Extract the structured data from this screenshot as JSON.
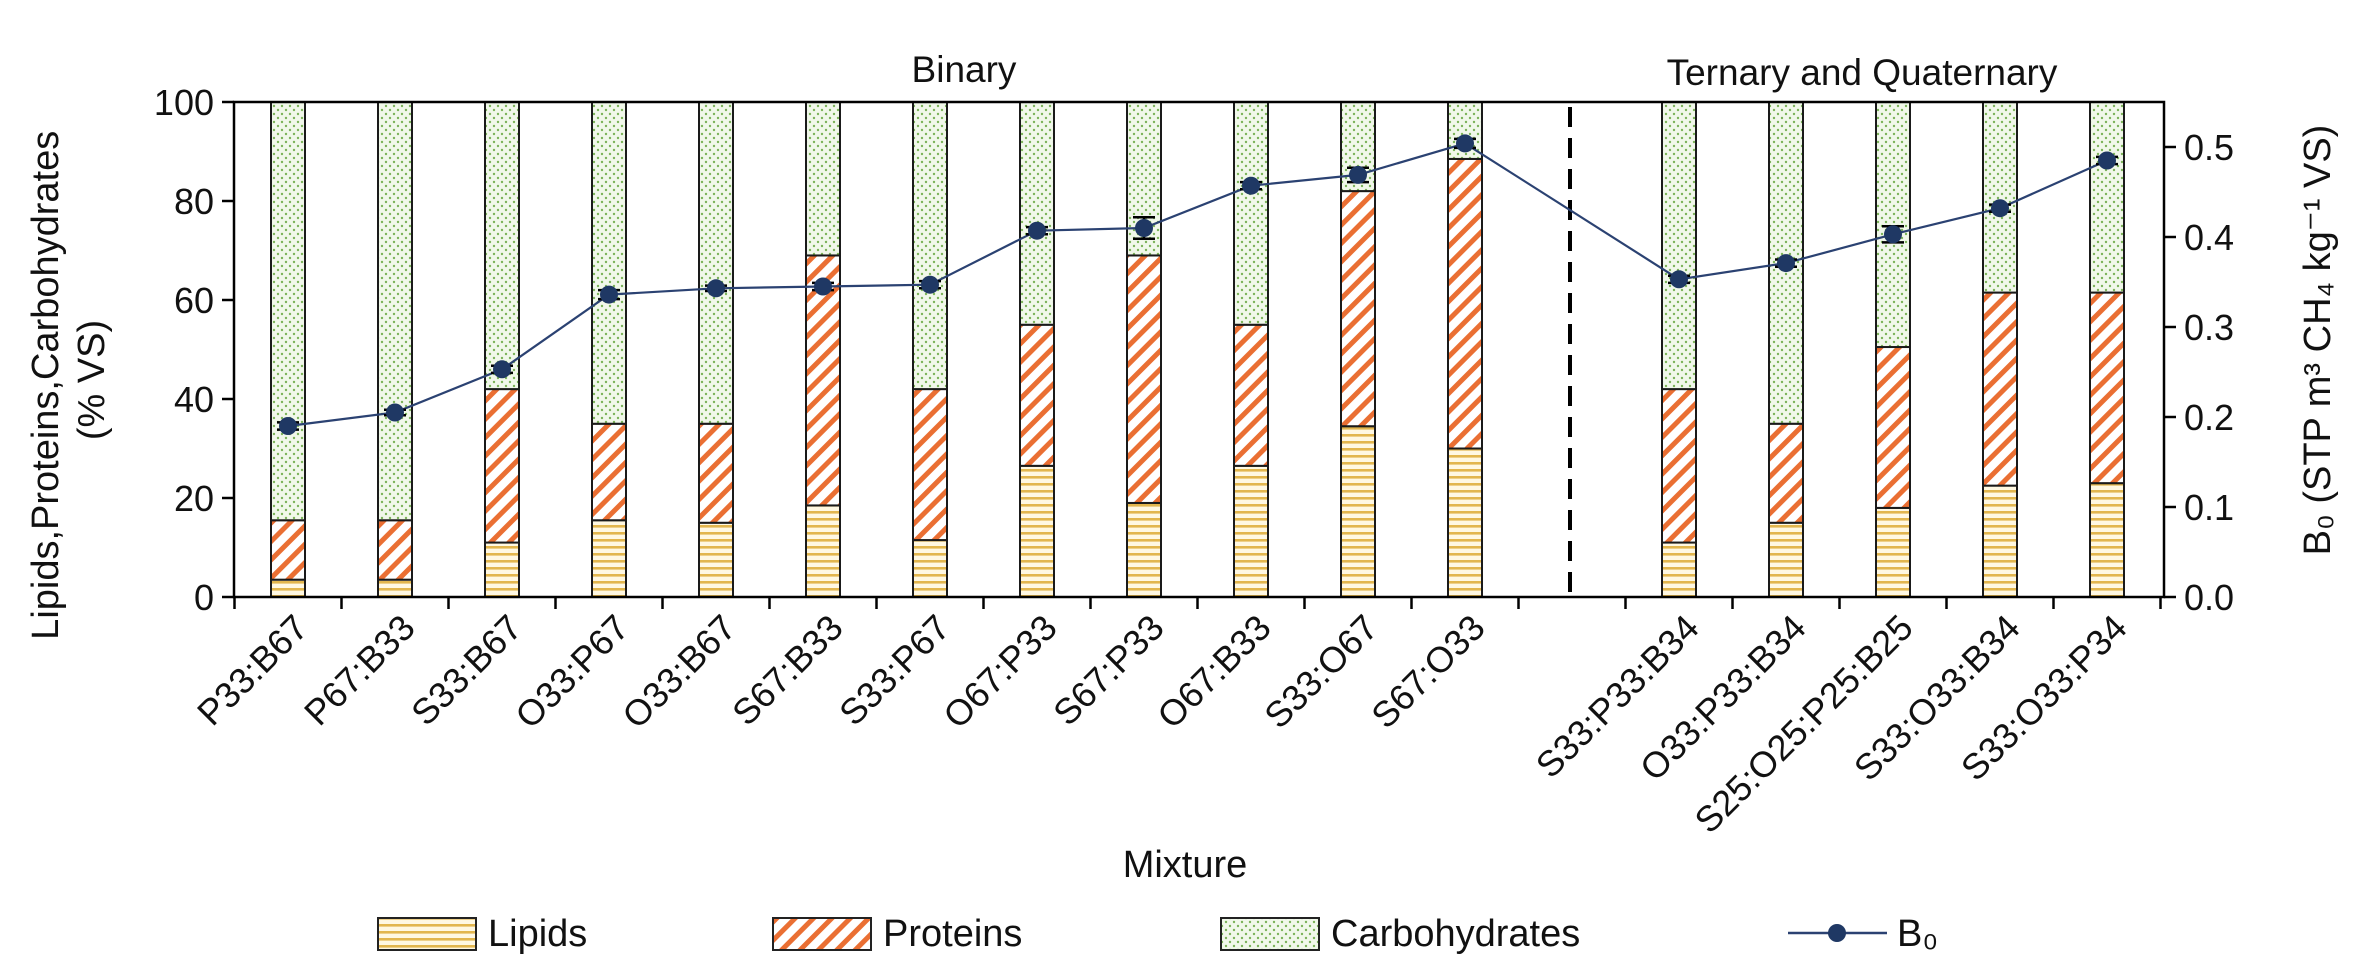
{
  "chart_data": {
    "type": "bar",
    "stacked": true,
    "xlabel": "Mixture",
    "ylabel_left_lines": [
      "Lipids,Proteins,Carbohydrates",
      "(% VS)"
    ],
    "ylabel_right": "B₀ (STP m³ CH₄ kg⁻¹ VS)",
    "ylim_left": [
      0,
      100
    ],
    "yticks_left": [
      "0",
      "20",
      "40",
      "60",
      "80",
      "100"
    ],
    "ylim_right": [
      0,
      0.55
    ],
    "yticks_right": [
      "0.0",
      "0.1",
      "0.2",
      "0.3",
      "0.4",
      "0.5"
    ],
    "groups": [
      {
        "label": "Binary",
        "categories": [
          "P33:B67",
          "P67:B33",
          "S33:B67",
          "O33:P67",
          "O33:B67",
          "S67:B33",
          "S33:P67",
          "O67:P33",
          "S67:P33",
          "O67:B33",
          "S33:O67",
          "S67:O33"
        ]
      },
      {
        "label": "Ternary and Quaternary",
        "categories": [
          "S33:P33:B34",
          "O33:P33:B34",
          "S25:O25:P25:B25",
          "S33:O33:B34",
          "S33:O33:P34"
        ]
      }
    ],
    "series": [
      {
        "name": "Lipids",
        "color": "#e8c96a",
        "pattern": "horizontal-lines",
        "values": [
          3.5,
          3.5,
          11,
          15.5,
          15,
          18.5,
          11.5,
          26.5,
          19,
          26.5,
          34.5,
          30,
          11,
          15,
          18,
          22.5,
          23
        ]
      },
      {
        "name": "Proteins",
        "color": "#e9733b",
        "pattern": "diagonal-lines",
        "values": [
          12,
          12,
          31,
          19.5,
          20,
          50.5,
          30.5,
          28.5,
          50,
          28.5,
          47.5,
          58.5,
          31,
          20,
          32.5,
          39,
          38.5
        ]
      },
      {
        "name": "Carbohydrates",
        "color": "#8fc26a",
        "pattern": "dots",
        "values": [
          84.5,
          84.5,
          58,
          65,
          65,
          31,
          58,
          45,
          31,
          45,
          18,
          11.5,
          58,
          65,
          49.5,
          38.5,
          38.5
        ]
      }
    ],
    "line_series": {
      "name": "B₀",
      "axis": "right",
      "color": "#2b4272",
      "values": [
        0.19,
        0.205,
        0.253,
        0.336,
        0.343,
        0.345,
        0.347,
        0.407,
        0.41,
        0.457,
        0.469,
        0.504,
        0.353,
        0.371,
        0.403,
        0.432,
        0.485
      ],
      "errors": [
        0.004,
        0.003,
        0.004,
        0.005,
        0.003,
        0.004,
        0.004,
        0.004,
        0.012,
        0.004,
        0.008,
        0.005,
        0.004,
        0.004,
        0.009,
        0.004,
        0.004
      ]
    },
    "legend": [
      "Lipids",
      "Proteins",
      "Carbohydrates",
      "B₀"
    ],
    "legend_position": "bottom",
    "grid": false
  }
}
